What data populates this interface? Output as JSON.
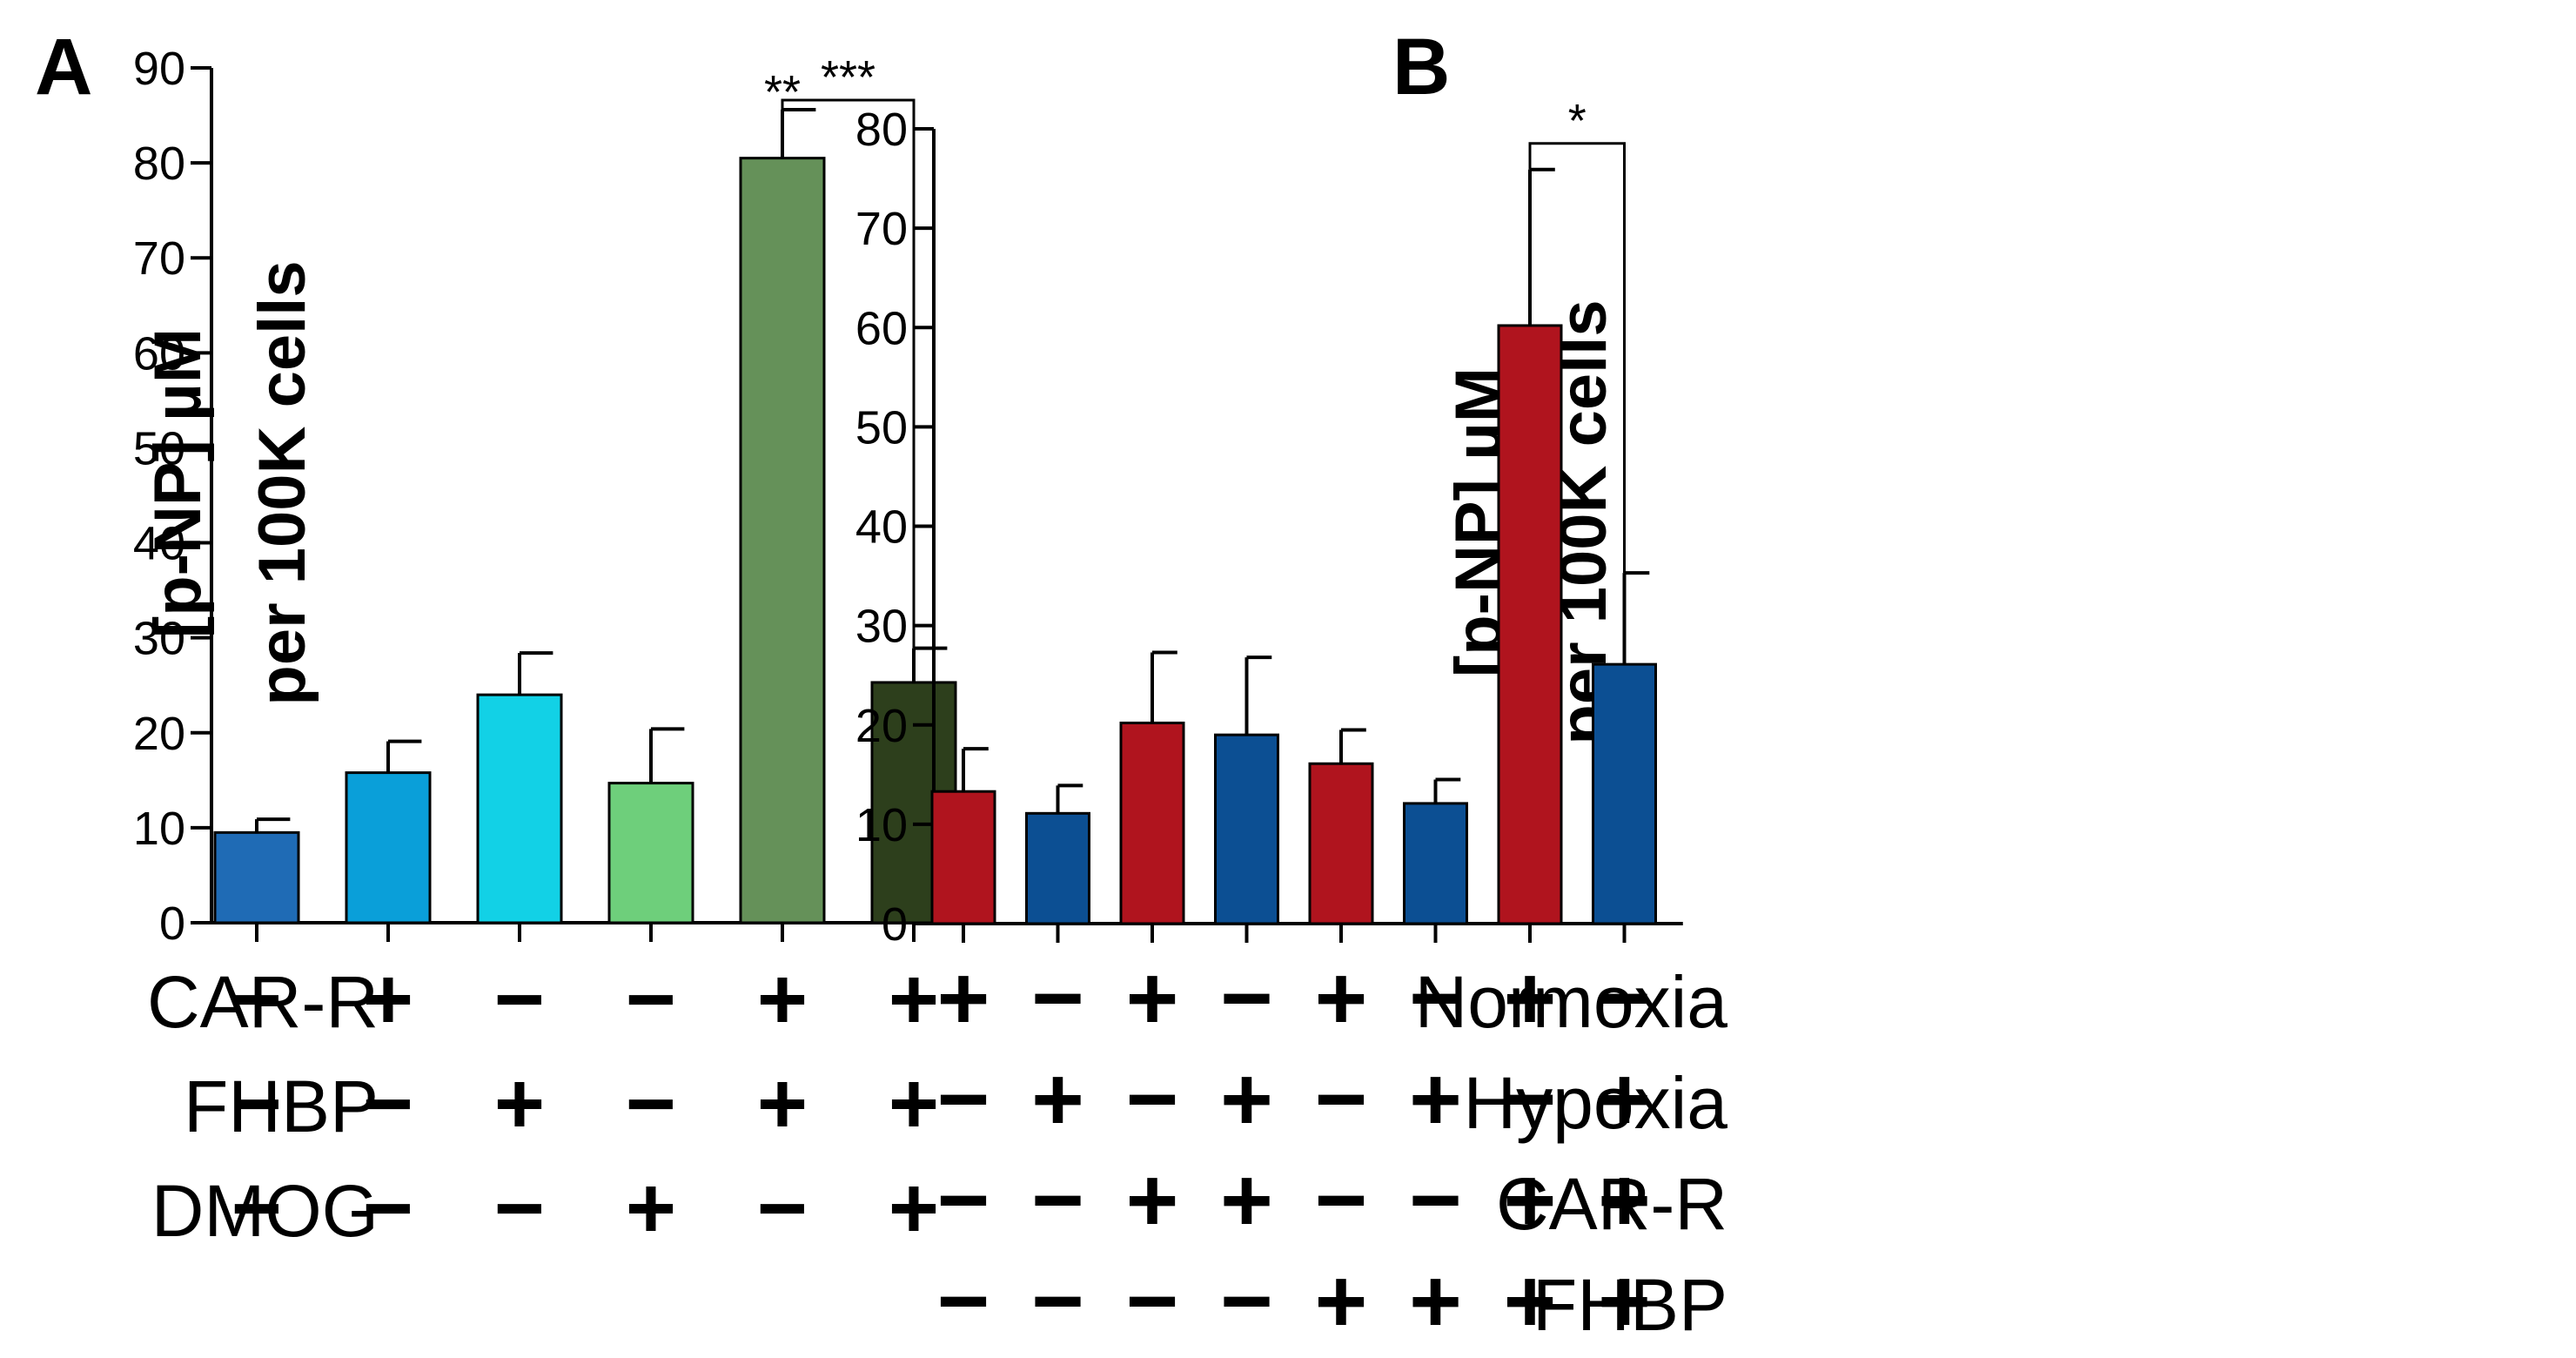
{
  "chart_data": [
    {
      "type": "bar",
      "panel_label": "A",
      "ylabel_lines": [
        "[p-NP] µM",
        "per 100K cells"
      ],
      "ylim": [
        0,
        90
      ],
      "yticks": [
        0,
        10,
        20,
        30,
        40,
        50,
        60,
        70,
        80,
        90
      ],
      "values": [
        9.5,
        15.8,
        24,
        14.7,
        80.5,
        25.3
      ],
      "errors": [
        1.4,
        3.3,
        4.4,
        5.7,
        5.1,
        3.6
      ],
      "colors": [
        "#1f6bb5",
        "#0a9fd9",
        "#12d1e6",
        "#6ecf7b",
        "#659159",
        "#2d3f1c"
      ],
      "factors": [
        {
          "label": "CAR-R",
          "signs": [
            "−",
            "+",
            "−",
            "−",
            "+",
            "+"
          ]
        },
        {
          "label": "FHBP",
          "signs": [
            "−",
            "−",
            "+",
            "−",
            "+",
            "+"
          ]
        },
        {
          "label": "DMOG",
          "signs": [
            "−",
            "−",
            "−",
            "+",
            "−",
            "+"
          ]
        }
      ],
      "annotations": [
        {
          "text": "**",
          "bar": 4
        },
        {
          "text": "***",
          "bracket": [
            4,
            5
          ]
        }
      ]
    },
    {
      "type": "bar",
      "panel_label": "B",
      "ylabel_lines": [
        "[p-NP] µM",
        "per 100K cells"
      ],
      "ylim": [
        0,
        80
      ],
      "yticks": [
        0,
        10,
        20,
        30,
        40,
        50,
        60,
        70,
        80
      ],
      "values": [
        13.3,
        11.1,
        20.2,
        19,
        16.1,
        12.1,
        60.2,
        26.1
      ],
      "errors": [
        4.3,
        2.8,
        7.1,
        7.8,
        3.4,
        2.4,
        15.7,
        9.2
      ],
      "colors": [
        "#b0141e",
        "#0c4f93",
        "#b0141e",
        "#0c4f93",
        "#b0141e",
        "#0c4f93",
        "#b0141e",
        "#0c4f93"
      ],
      "factors": [
        {
          "label": "Normoxia",
          "signs": [
            "+",
            "−",
            "+",
            "−",
            "+",
            "−",
            "+",
            "−"
          ]
        },
        {
          "label": "Hypoxia",
          "signs": [
            "−",
            "+",
            "−",
            "+",
            "−",
            "+",
            "−",
            "+"
          ]
        },
        {
          "label": "CAR-R",
          "signs": [
            "−",
            "−",
            "+",
            "+",
            "−",
            "−",
            "+",
            "+"
          ]
        },
        {
          "label": "FHBP",
          "signs": [
            "−",
            "−",
            "−",
            "−",
            "+",
            "+",
            "+",
            "+"
          ]
        }
      ],
      "annotations": [
        {
          "text": "*",
          "bracket": [
            6,
            7
          ]
        }
      ]
    }
  ]
}
